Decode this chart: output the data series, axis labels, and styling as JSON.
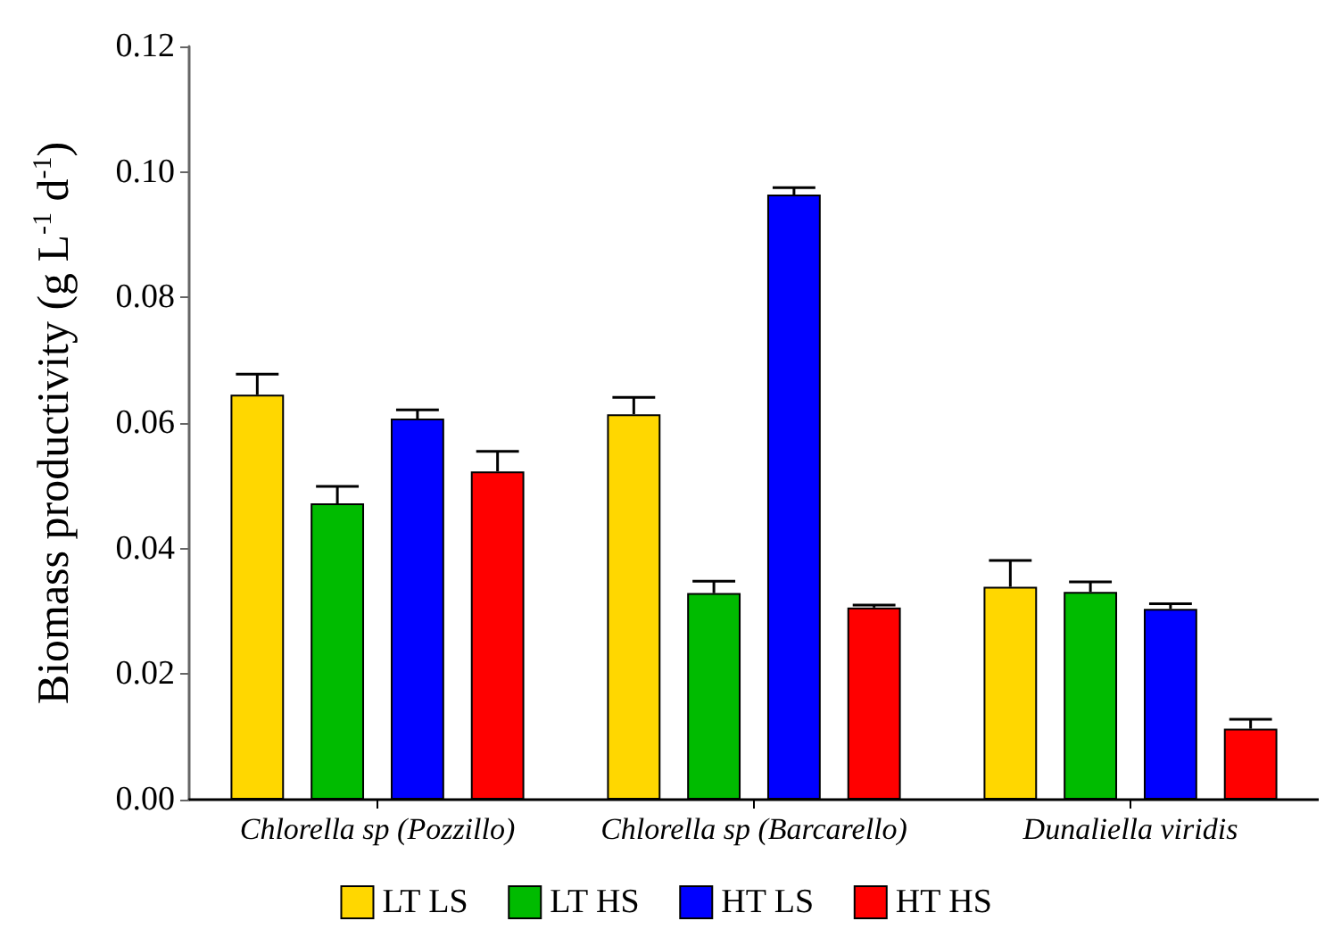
{
  "chart_data": {
    "type": "bar",
    "ylabel": "Biomass productivity (g L$^{-1}$ d$^{-1}$)",
    "categories": [
      "Chlorella sp (Pozzillo)",
      "Chlorella sp (Barcarello)",
      "Dunaliella viridis"
    ],
    "series": [
      {
        "name": "LT LS",
        "color": "#ffd700",
        "values": [
          0.0645,
          0.0614,
          0.0339
        ],
        "errors": [
          [
            0.0645,
            0.0678
          ],
          [
            0.0614,
            0.0641
          ],
          [
            0.0339,
            0.0381
          ]
        ]
      },
      {
        "name": "LT HS",
        "color": "#00bb00",
        "values": [
          0.0472,
          0.0329,
          0.0331
        ],
        "errors": [
          [
            0.0472,
            0.0499
          ],
          [
            0.0329,
            0.0348
          ],
          [
            0.0331,
            0.0347
          ]
        ]
      },
      {
        "name": "HT LS",
        "color": "#0000ff",
        "values": [
          0.0607,
          0.0964,
          0.0304
        ],
        "errors": [
          [
            0.0607,
            0.0621
          ],
          [
            0.0964,
            0.0975
          ],
          [
            0.0304,
            0.0312
          ]
        ]
      },
      {
        "name": "HT HS",
        "color": "#ff0000",
        "values": [
          0.0523,
          0.0306,
          0.0113
        ],
        "errors": [
          [
            0.0523,
            0.0555
          ],
          [
            0.0306,
            0.031
          ],
          [
            0.0113,
            0.0128
          ]
        ]
      }
    ],
    "ylim": [
      0,
      0.12
    ],
    "yticks": [
      {
        "value": 0,
        "label": "0.00"
      },
      {
        "value": 0.02,
        "label": "0.02"
      },
      {
        "value": 0.04,
        "label": "0.04"
      },
      {
        "value": 0.06,
        "label": "0.06"
      },
      {
        "value": 0.08,
        "label": "0.08"
      },
      {
        "value": 0.1,
        "label": "0.10"
      },
      {
        "value": 0.12,
        "label": "0.12"
      }
    ],
    "grid": false,
    "legend": "bottom"
  }
}
